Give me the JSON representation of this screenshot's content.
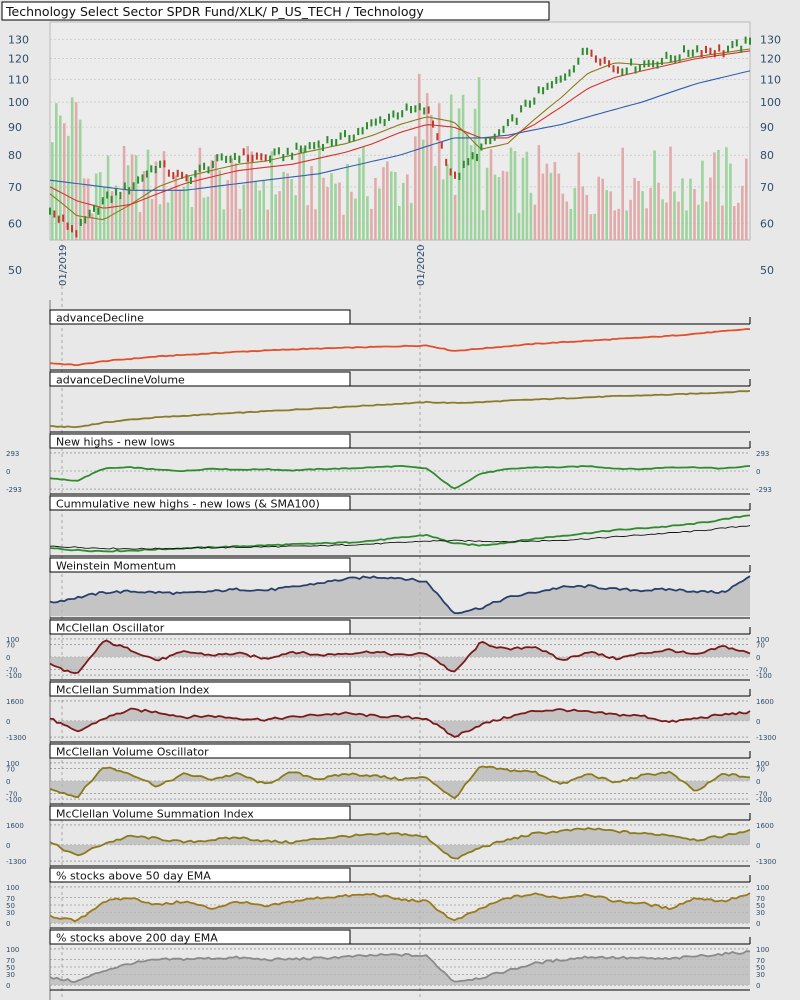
{
  "title": "Technology Select Sector SPDR Fund/XLK/ P_US_TECH / Technology",
  "colors": {
    "background": "#e8e8e8",
    "price_up": "#2e8b2e",
    "price_down": "#c0392b",
    "sma_short": "#8b7a1a",
    "sma_mid": "#d9302a",
    "sma_long": "#2f5fb0",
    "volume_up": "#8fcf8f",
    "volume_down": "#e0a0a0"
  },
  "chart_data": [
    {
      "type": "line",
      "title": "Technology Select Sector SPDR Fund/XLK/ P_US_TECH / Technology",
      "scale": "log",
      "y_ticks": [
        130,
        120,
        110,
        100,
        90,
        80,
        70,
        60,
        50
      ],
      "x_ticks": [
        "01/2019",
        "01/2020"
      ],
      "grid": true,
      "x": [
        "2018-12",
        "2019-01",
        "2019-02",
        "2019-03",
        "2019-04",
        "2019-05",
        "2019-06",
        "2019-07",
        "2019-08",
        "2019-09",
        "2019-10",
        "2019-11",
        "2019-12",
        "2020-01",
        "2020-02",
        "2020-03",
        "2020-04",
        "2020-05",
        "2020-06",
        "2020-07",
        "2020-08",
        "2020-09",
        "2020-10",
        "2020-11",
        "2020-12",
        "2021-01",
        "2021-02"
      ],
      "series": [
        {
          "role": "price",
          "values": [
            63,
            58,
            66,
            70,
            77,
            72,
            77,
            80,
            79,
            81,
            84,
            86,
            91,
            96,
            97,
            72,
            82,
            90,
            102,
            110,
            125,
            115,
            117,
            120,
            125,
            124,
            128
          ]
        },
        {
          "role": "sma_short",
          "values": [
            68,
            62,
            61,
            65,
            70,
            73,
            75,
            77,
            78,
            80,
            82,
            84,
            87,
            91,
            94,
            92,
            82,
            84,
            93,
            102,
            113,
            118,
            117,
            118,
            121,
            123,
            125
          ]
        },
        {
          "role": "sma_mid",
          "values": [
            70,
            66,
            64,
            65,
            68,
            71,
            73,
            75,
            76,
            77,
            79,
            81,
            84,
            88,
            91,
            90,
            86,
            86,
            91,
            98,
            106,
            111,
            114,
            117,
            120,
            122,
            124
          ]
        },
        {
          "role": "sma_long",
          "values": [
            72,
            71,
            70,
            69,
            69,
            69,
            70,
            71,
            72,
            73,
            74,
            76,
            78,
            80,
            83,
            86,
            86,
            87,
            89,
            91,
            94,
            97,
            100,
            104,
            108,
            111,
            114
          ]
        }
      ]
    },
    {
      "type": "line",
      "title": "advanceDecline",
      "values": [
        5,
        0,
        10,
        16,
        22,
        26,
        30,
        34,
        37,
        40,
        42,
        44,
        46,
        48,
        50,
        36,
        42,
        48,
        54,
        58,
        62,
        66,
        70,
        74,
        80,
        86,
        92
      ]
    },
    {
      "type": "line",
      "title": "advanceDeclineVolume",
      "values": [
        2,
        0,
        12,
        20,
        26,
        30,
        34,
        38,
        42,
        46,
        50,
        54,
        58,
        62,
        66,
        64,
        66,
        70,
        73,
        76,
        79,
        82,
        84,
        86,
        89,
        92,
        96
      ]
    },
    {
      "type": "line",
      "title": "New highs - new lows",
      "y_ticks": [
        293,
        0,
        -293
      ],
      "values": [
        -120,
        -160,
        40,
        60,
        20,
        0,
        40,
        20,
        30,
        10,
        30,
        40,
        60,
        80,
        40,
        -293,
        -40,
        30,
        60,
        60,
        80,
        40,
        30,
        60,
        60,
        40,
        80
      ]
    },
    {
      "type": "line",
      "title": "Cummulative new highs - new lows (& SMA100)",
      "series": [
        {
          "role": "value",
          "values": [
            10,
            6,
            4,
            5,
            8,
            10,
            12,
            14,
            16,
            18,
            20,
            22,
            26,
            32,
            38,
            20,
            16,
            22,
            30,
            36,
            42,
            48,
            52,
            56,
            62,
            70,
            80
          ]
        },
        {
          "role": "sma",
          "values": [
            14,
            12,
            10,
            9,
            9,
            10,
            11,
            12,
            13,
            14,
            15,
            17,
            19,
            22,
            25,
            26,
            25,
            24,
            25,
            27,
            30,
            34,
            38,
            42,
            46,
            52,
            58
          ]
        }
      ]
    },
    {
      "type": "area",
      "title": "Weinstein Momentum",
      "values": [
        40,
        50,
        60,
        62,
        60,
        58,
        62,
        66,
        64,
        70,
        78,
        86,
        90,
        88,
        80,
        20,
        30,
        50,
        60,
        70,
        72,
        66,
        64,
        66,
        62,
        60,
        90
      ]
    },
    {
      "type": "area",
      "title": "McClellan Oscillator",
      "y_ticks": [
        100,
        70,
        0,
        -70,
        -100
      ],
      "values": [
        -40,
        -100,
        90,
        40,
        -20,
        30,
        10,
        20,
        -10,
        30,
        10,
        20,
        30,
        10,
        20,
        -90,
        80,
        40,
        60,
        -20,
        30,
        -10,
        20,
        40,
        10,
        60,
        20
      ]
    },
    {
      "type": "area",
      "title": "McClellan Summation Index",
      "y_ticks": [
        1600,
        0,
        -1300
      ],
      "values": [
        200,
        -900,
        200,
        900,
        700,
        300,
        400,
        200,
        100,
        300,
        500,
        600,
        400,
        300,
        200,
        -1300,
        -300,
        300,
        800,
        900,
        700,
        500,
        400,
        -100,
        200,
        500,
        700
      ]
    },
    {
      "type": "area",
      "title": "McClellan Volume Oscillator",
      "y_ticks": [
        100,
        70,
        0,
        -70,
        -100
      ],
      "values": [
        -40,
        -90,
        80,
        40,
        -30,
        40,
        10,
        40,
        -20,
        50,
        10,
        40,
        30,
        10,
        20,
        -100,
        80,
        60,
        50,
        -20,
        40,
        -10,
        30,
        50,
        -60,
        40,
        20
      ]
    },
    {
      "type": "area",
      "title": "McClellan Volume Summation Index",
      "y_ticks": [
        1600,
        0,
        -1300
      ],
      "values": [
        200,
        -900,
        100,
        700,
        500,
        200,
        400,
        600,
        300,
        200,
        500,
        700,
        800,
        900,
        600,
        -1200,
        -200,
        400,
        900,
        1100,
        1300,
        1100,
        900,
        800,
        400,
        700,
        1200
      ]
    },
    {
      "type": "area",
      "title": "% stocks above 50 day EMA",
      "y_ticks": [
        100,
        70,
        50,
        30,
        0
      ],
      "values": [
        20,
        5,
        60,
        70,
        50,
        60,
        40,
        60,
        45,
        60,
        70,
        75,
        80,
        65,
        60,
        5,
        40,
        70,
        80,
        70,
        80,
        60,
        55,
        40,
        70,
        60,
        80
      ]
    },
    {
      "type": "area",
      "title": "% stocks above 200 day EMA",
      "y_ticks": [
        100,
        70,
        50,
        30,
        0
      ],
      "values": [
        20,
        10,
        40,
        60,
        70,
        72,
        74,
        76,
        70,
        72,
        74,
        78,
        82,
        84,
        80,
        10,
        20,
        40,
        60,
        70,
        78,
        76,
        74,
        72,
        80,
        86,
        92
      ]
    }
  ]
}
